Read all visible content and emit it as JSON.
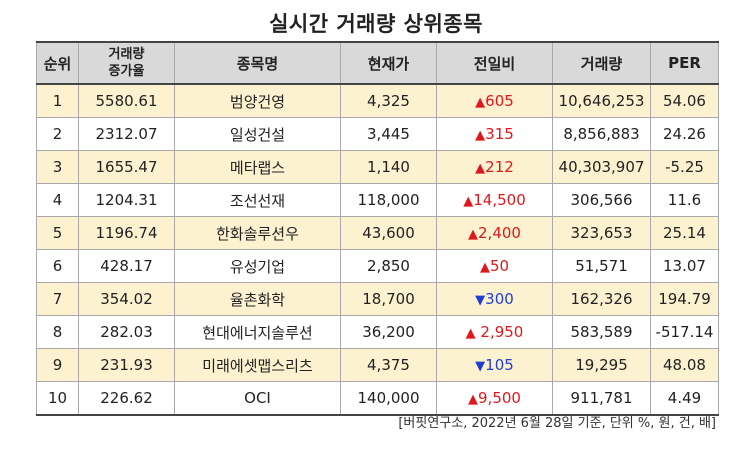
{
  "title": "실시간 거래량 상위종목",
  "headers": {
    "rank": "순위",
    "growth_line1": "거래량",
    "growth_line2": "증가율",
    "name": "종목명",
    "price": "현재가",
    "change": "전일비",
    "volume": "거래량",
    "per": "PER"
  },
  "rows": [
    {
      "rank": "1",
      "growth": "5580.61",
      "name": "범양건영",
      "price": "4,325",
      "dir": "up",
      "arrow": "▲",
      "change": "605",
      "volume": "10,646,253",
      "per": "54.06"
    },
    {
      "rank": "2",
      "growth": "2312.07",
      "name": "일성건설",
      "price": "3,445",
      "dir": "up",
      "arrow": "▲",
      "change": "315",
      "volume": "8,856,883",
      "per": "24.26"
    },
    {
      "rank": "3",
      "growth": "1655.47",
      "name": "메타랩스",
      "price": "1,140",
      "dir": "up",
      "arrow": "▲",
      "change": "212",
      "volume": "40,303,907",
      "per": "-5.25"
    },
    {
      "rank": "4",
      "growth": "1204.31",
      "name": "조선선재",
      "price": "118,000",
      "dir": "up",
      "arrow": "▲",
      "change": "14,500",
      "volume": "306,566",
      "per": "11.6"
    },
    {
      "rank": "5",
      "growth": "1196.74",
      "name": "한화솔루션우",
      "price": "43,600",
      "dir": "up",
      "arrow": "▲",
      "change": "2,400",
      "volume": "323,653",
      "per": "25.14"
    },
    {
      "rank": "6",
      "growth": "428.17",
      "name": "유성기업",
      "price": "2,850",
      "dir": "up",
      "arrow": "▲",
      "change": "50",
      "volume": "51,571",
      "per": "13.07"
    },
    {
      "rank": "7",
      "growth": "354.02",
      "name": "율촌화학",
      "price": "18,700",
      "dir": "down",
      "arrow": "▼",
      "change": "300",
      "volume": "162,326",
      "per": "194.79"
    },
    {
      "rank": "8",
      "growth": "282.03",
      "name": "현대에너지솔루션",
      "price": "36,200",
      "dir": "up",
      "arrow": "▲",
      "change": " 2,950",
      "volume": "583,589",
      "per": "-517.14"
    },
    {
      "rank": "9",
      "growth": "231.93",
      "name": "미래에셋맵스리츠",
      "price": "4,375",
      "dir": "down",
      "arrow": "▼",
      "change": "105",
      "volume": "19,295",
      "per": "48.08"
    },
    {
      "rank": "10",
      "growth": "226.62",
      "name": "OCI",
      "price": "140,000",
      "dir": "up",
      "arrow": "▲",
      "change": "9,500",
      "volume": "911,781",
      "per": "4.49"
    }
  ],
  "colors": {
    "up": "#e0181b",
    "down": "#1f3fd1",
    "header_bg": "#d9d9d9",
    "alt_row_bg": "#fdf2d0"
  },
  "source": "[버핏연구소, 2022년 6월 28일 기준, 단위 %, 원, 건, 배]"
}
